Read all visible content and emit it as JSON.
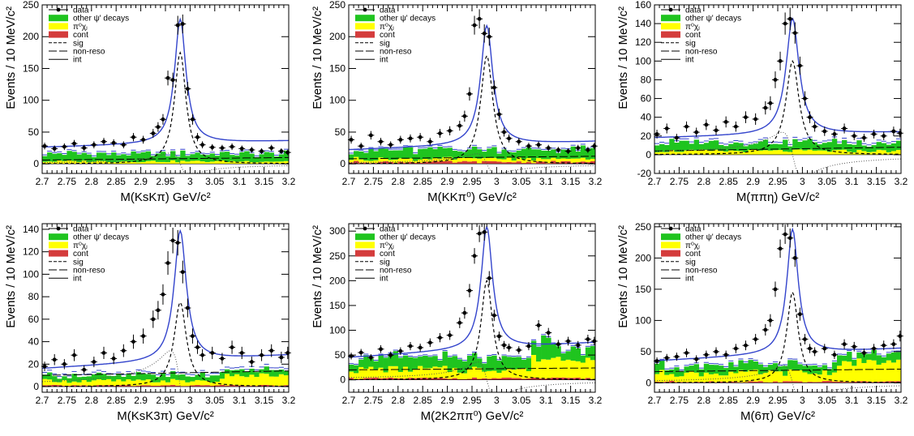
{
  "colors": {
    "other_decays": "#1fc41f",
    "pi0chi": "#ffff00",
    "cont": "#d43c3c",
    "fit": "#3344cc",
    "data": "#000000"
  },
  "legend": {
    "data": "data",
    "other": "other ψ' decays",
    "pi0chi": "π⁰χⱼ",
    "cont": "cont",
    "sig": "sig",
    "nonreso": "non-reso",
    "int": "int"
  },
  "ylabel": "Events / 10 MeV/c²",
  "xticks": [
    "2.7",
    "2.75",
    "2.8",
    "2.85",
    "2.9",
    "2.95",
    "3",
    "3.05",
    "3.1",
    "3.15",
    "3.2"
  ],
  "chart_data": [
    {
      "type": "line",
      "xlabel": "M(KsKπ) GeV/c²",
      "xlim": [
        2.7,
        3.2
      ],
      "ylim": [
        -15,
        250
      ],
      "yticks": [
        0,
        50,
        100,
        150,
        200,
        250
      ],
      "peak": 222,
      "width": 0.014,
      "bkg": [
        26,
        36
      ],
      "sig_peak": 175,
      "int_amp": 22,
      "other_level": 12,
      "pi0_level": 4,
      "cont_level": 0,
      "nonreso_level": 6,
      "x": [
        2.705,
        2.725,
        2.745,
        2.765,
        2.785,
        2.805,
        2.825,
        2.845,
        2.865,
        2.885,
        2.905,
        2.925,
        2.935,
        2.945,
        2.955,
        2.965,
        2.975,
        2.985,
        2.995,
        3.005,
        3.015,
        3.025,
        3.045,
        3.065,
        3.085,
        3.105,
        3.125,
        3.145,
        3.165,
        3.185,
        3.198
      ],
      "y": [
        28,
        24,
        27,
        32,
        25,
        30,
        35,
        33,
        30,
        42,
        38,
        48,
        58,
        70,
        135,
        132,
        218,
        220,
        118,
        70,
        42,
        30,
        26,
        25,
        27,
        24,
        22,
        20,
        25,
        20,
        18
      ]
    },
    {
      "type": "line",
      "xlabel": "M(KKπ⁰) GeV/c²",
      "xlim": [
        2.7,
        3.2
      ],
      "ylim": [
        -15,
        250
      ],
      "yticks": [
        0,
        50,
        100,
        150,
        200,
        250
      ],
      "peak": 210,
      "width": 0.015,
      "bkg": [
        22,
        35
      ],
      "sig_peak": 170,
      "int_amp": 20,
      "other_level": 14,
      "pi0_level": 5,
      "cont_level": 3,
      "nonreso_level": 8,
      "x": [
        2.705,
        2.725,
        2.745,
        2.765,
        2.785,
        2.805,
        2.825,
        2.845,
        2.865,
        2.885,
        2.905,
        2.925,
        2.935,
        2.945,
        2.955,
        2.965,
        2.975,
        2.985,
        2.995,
        3.005,
        3.015,
        3.025,
        3.045,
        3.065,
        3.085,
        3.105,
        3.125,
        3.145,
        3.165,
        3.185,
        3.198
      ],
      "y": [
        38,
        28,
        45,
        35,
        30,
        38,
        40,
        42,
        35,
        48,
        52,
        60,
        75,
        110,
        218,
        228,
        205,
        200,
        120,
        78,
        50,
        40,
        35,
        28,
        30,
        25,
        22,
        20,
        25,
        22,
        28
      ]
    },
    {
      "type": "line",
      "xlabel": "M(ππη) GeV/c²",
      "xlim": [
        2.7,
        3.2
      ],
      "ylim": [
        -20,
        160
      ],
      "yticks": [
        -20,
        0,
        20,
        40,
        60,
        80,
        100,
        120,
        140,
        160
      ],
      "peak": 142,
      "width": 0.016,
      "bkg": [
        18,
        24
      ],
      "sig_peak": 100,
      "int_amp": 30,
      "other_level": 9,
      "pi0_level": 4,
      "cont_level": 0,
      "nonreso_level": 4,
      "x": [
        2.705,
        2.725,
        2.745,
        2.765,
        2.785,
        2.805,
        2.825,
        2.845,
        2.865,
        2.885,
        2.905,
        2.925,
        2.935,
        2.945,
        2.955,
        2.965,
        2.975,
        2.985,
        2.995,
        3.005,
        3.015,
        3.025,
        3.045,
        3.065,
        3.085,
        3.105,
        3.125,
        3.145,
        3.165,
        3.185,
        3.198
      ],
      "y": [
        22,
        28,
        18,
        30,
        24,
        32,
        26,
        35,
        30,
        40,
        38,
        50,
        55,
        80,
        100,
        140,
        145,
        130,
        95,
        60,
        40,
        30,
        25,
        22,
        28,
        20,
        18,
        22,
        20,
        25,
        23
      ]
    },
    {
      "type": "line",
      "xlabel": "M(KsK3π) GeV/c²",
      "xlim": [
        2.7,
        3.2
      ],
      "ylim": [
        -5,
        145
      ],
      "yticks": [
        0,
        20,
        40,
        60,
        80,
        100,
        120,
        140
      ],
      "peak": 132,
      "width": 0.015,
      "bkg": [
        16,
        28
      ],
      "sig_peak": 75,
      "int_amp": 40,
      "other_level": 5,
      "pi0_level": 4,
      "cont_level": 1,
      "nonreso_level": 10,
      "x": [
        2.705,
        2.725,
        2.745,
        2.765,
        2.785,
        2.805,
        2.825,
        2.845,
        2.865,
        2.885,
        2.905,
        2.925,
        2.935,
        2.945,
        2.955,
        2.965,
        2.975,
        2.985,
        2.995,
        3.005,
        3.015,
        3.025,
        3.045,
        3.065,
        3.085,
        3.105,
        3.125,
        3.145,
        3.165,
        3.185,
        3.198
      ],
      "y": [
        18,
        24,
        20,
        28,
        15,
        22,
        30,
        25,
        32,
        40,
        45,
        60,
        68,
        82,
        110,
        130,
        128,
        102,
        70,
        45,
        35,
        28,
        30,
        25,
        35,
        30,
        22,
        28,
        32,
        26,
        30
      ]
    },
    {
      "type": "line",
      "xlabel": "M(2K2ππ⁰) GeV/c²",
      "xlim": [
        2.7,
        3.2
      ],
      "ylim": [
        -25,
        315
      ],
      "yticks": [
        0,
        50,
        100,
        150,
        200,
        250,
        300
      ],
      "peak": 292,
      "width": 0.014,
      "bkg": [
        45,
        75
      ],
      "sig_peak": 200,
      "int_amp": 45,
      "other_level": 22,
      "pi0_level": 18,
      "cont_level": 3,
      "nonreso_level": 20,
      "x": [
        2.705,
        2.725,
        2.745,
        2.765,
        2.785,
        2.805,
        2.825,
        2.845,
        2.865,
        2.885,
        2.905,
        2.925,
        2.935,
        2.945,
        2.955,
        2.965,
        2.975,
        2.985,
        2.995,
        3.005,
        3.015,
        3.025,
        3.045,
        3.065,
        3.085,
        3.105,
        3.125,
        3.145,
        3.165,
        3.185,
        3.198
      ],
      "y": [
        48,
        55,
        45,
        62,
        50,
        58,
        68,
        65,
        75,
        85,
        90,
        115,
        135,
        180,
        250,
        295,
        298,
        205,
        130,
        88,
        70,
        65,
        60,
        68,
        110,
        95,
        72,
        78,
        70,
        82,
        78
      ]
    },
    {
      "type": "line",
      "xlabel": "M(6π) GeV/c²",
      "xlim": [
        2.7,
        3.2
      ],
      "ylim": [
        -15,
        255
      ],
      "yticks": [
        0,
        50,
        100,
        150,
        200,
        250
      ],
      "peak": 235,
      "width": 0.014,
      "bkg": [
        35,
        55
      ],
      "sig_peak": 145,
      "int_amp": 35,
      "other_level": 12,
      "pi0_level": 14,
      "cont_level": 2,
      "nonreso_level": 18,
      "x": [
        2.705,
        2.725,
        2.745,
        2.765,
        2.785,
        2.805,
        2.825,
        2.845,
        2.865,
        2.885,
        2.905,
        2.925,
        2.935,
        2.945,
        2.955,
        2.965,
        2.975,
        2.985,
        2.995,
        3.005,
        3.015,
        3.025,
        3.045,
        3.065,
        3.085,
        3.105,
        3.125,
        3.145,
        3.165,
        3.185,
        3.198
      ],
      "y": [
        35,
        40,
        42,
        48,
        38,
        45,
        50,
        45,
        55,
        60,
        70,
        85,
        100,
        150,
        215,
        238,
        232,
        200,
        110,
        70,
        55,
        50,
        55,
        45,
        62,
        58,
        48,
        55,
        60,
        62,
        75
      ]
    }
  ]
}
